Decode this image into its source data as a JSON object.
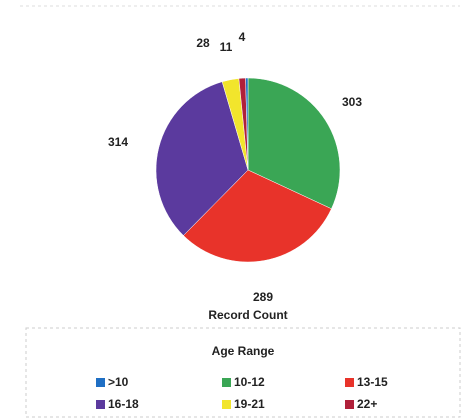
{
  "chart_data": {
    "type": "pie",
    "label": "Record Count",
    "legend_title": "Age Range",
    "categories": [
      ">10",
      "10-12",
      "13-15",
      "16-18",
      "19-21",
      "22+"
    ],
    "values": [
      4,
      303,
      289,
      314,
      28,
      11
    ],
    "colors": [
      "#1f6fc4",
      "#3aa655",
      "#e8332a",
      "#5b3a9e",
      "#f2e52c",
      "#b0203a"
    ],
    "legend": "bottom"
  }
}
